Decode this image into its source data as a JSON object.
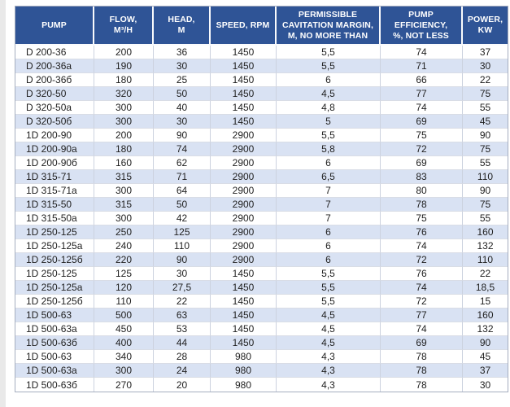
{
  "colors": {
    "header_bg": "#2F5496",
    "header_text": "#FFFFFF",
    "row_stripe": "#D9E2F3",
    "row_plain": "#FFFFFF",
    "body_text": "#1F1F1F",
    "grid_border": "#CCD2DF",
    "outer_border": "#A6AEC0"
  },
  "table": {
    "columns": [
      {
        "key": "pump",
        "label": "PUMP"
      },
      {
        "key": "flow",
        "label": "FLOW,\nM³/H"
      },
      {
        "key": "head",
        "label": "HEAD,\nM"
      },
      {
        "key": "speed",
        "label": "SPEED, RPM"
      },
      {
        "key": "cavitation_margin",
        "label": "PERMISSIBLE\nCAVITATION MARGIN,\nM, NO MORE THAN"
      },
      {
        "key": "efficiency",
        "label": "PUMP\nEFFICIENCY,\n%, NOT LESS"
      },
      {
        "key": "power",
        "label": "POWER,\nKW"
      }
    ],
    "rows": [
      [
        "D 200-36",
        "200",
        "36",
        "1450",
        "5,5",
        "74",
        "37"
      ],
      [
        "D 200-36a",
        "190",
        "30",
        "1450",
        "5,5",
        "71",
        "30"
      ],
      [
        "D 200-36б",
        "180",
        "25",
        "1450",
        "6",
        "66",
        "22"
      ],
      [
        "D 320-50",
        "320",
        "50",
        "1450",
        "4,5",
        "77",
        "75"
      ],
      [
        "D 320-50a",
        "300",
        "40",
        "1450",
        "4,8",
        "74",
        "55"
      ],
      [
        "D 320-50б",
        "300",
        "30",
        "1450",
        "5",
        "69",
        "45"
      ],
      [
        "1D 200-90",
        "200",
        "90",
        "2900",
        "5,5",
        "75",
        "90"
      ],
      [
        "1D 200-90a",
        "180",
        "74",
        "2900",
        "5,8",
        "72",
        "75"
      ],
      [
        "1D 200-90б",
        "160",
        "62",
        "2900",
        "6",
        "69",
        "55"
      ],
      [
        "1D 315-71",
        "315",
        "71",
        "2900",
        "6,5",
        "83",
        "110"
      ],
      [
        "1D 315-71a",
        "300",
        "64",
        "2900",
        "7",
        "80",
        "90"
      ],
      [
        "1D 315-50",
        "315",
        "50",
        "2900",
        "7",
        "78",
        "75"
      ],
      [
        "1D 315-50a",
        "300",
        "42",
        "2900",
        "7",
        "75",
        "55"
      ],
      [
        "1D 250-125",
        "250",
        "125",
        "2900",
        "6",
        "76",
        "160"
      ],
      [
        "1D 250-125a",
        "240",
        "110",
        "2900",
        "6",
        "74",
        "132"
      ],
      [
        "1D 250-125б",
        "220",
        "90",
        "2900",
        "6",
        "72",
        "110"
      ],
      [
        "1D 250-125",
        "125",
        "30",
        "1450",
        "5,5",
        "76",
        "22"
      ],
      [
        "1D 250-125a",
        "120",
        "27,5",
        "1450",
        "5,5",
        "74",
        "18,5"
      ],
      [
        "1D 250-125б",
        "110",
        "22",
        "1450",
        "5,5",
        "72",
        "15"
      ],
      [
        "1D 500-63",
        "500",
        "63",
        "1450",
        "4,5",
        "77",
        "160"
      ],
      [
        "1D 500-63a",
        "450",
        "53",
        "1450",
        "4,5",
        "74",
        "132"
      ],
      [
        "1D 500-63б",
        "400",
        "44",
        "1450",
        "4,5",
        "69",
        "90"
      ],
      [
        "1D 500-63",
        "340",
        "28",
        "980",
        "4,3",
        "78",
        "45"
      ],
      [
        "1D 500-63a",
        "300",
        "24",
        "980",
        "4,3",
        "78",
        "37"
      ],
      [
        "1D 500-63б",
        "270",
        "20",
        "980",
        "4,3",
        "78",
        "30"
      ]
    ]
  }
}
